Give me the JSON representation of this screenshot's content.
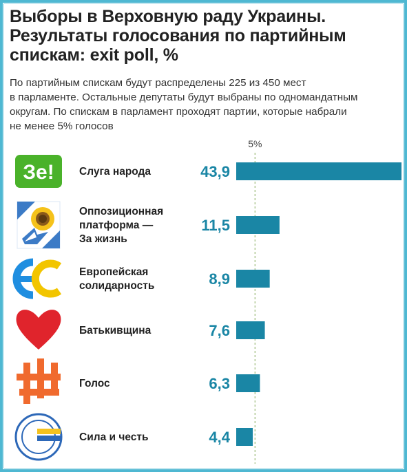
{
  "title_lines": [
    "Выборы в Верховную раду Украины.",
    "Результаты голосования по партийным",
    "спискам: exit poll, %"
  ],
  "subtitle_lines": [
    "По партийным спискам будут распределены 225 из 450 мест",
    "в парламенте. Остальные депутаты будут выбраны по одномандатным",
    "округам. По спискам в парламент проходят партии, которые набрали",
    "не менее 5% голосов"
  ],
  "chart_data": {
    "type": "bar",
    "orientation": "horizontal",
    "categories": [
      "Слуга народа",
      "Оппозиционная платформа — За жизнь",
      "Европейская солидарность",
      "Батькивщина",
      "Голос",
      "Сила и честь"
    ],
    "category_lines": [
      [
        "Слуга народа"
      ],
      [
        "Оппозиционная",
        "платформа —",
        "За жизнь"
      ],
      [
        "Европейская",
        "солидарность"
      ],
      [
        "Батькивщина"
      ],
      [
        "Голос"
      ],
      [
        "Сила и честь"
      ]
    ],
    "values": [
      43.9,
      11.5,
      8.9,
      7.6,
      6.3,
      4.4
    ],
    "value_labels": [
      "43,9",
      "11,5",
      "8,9",
      "7,6",
      "6,3",
      "4,4"
    ],
    "logos": [
      "ze-logo",
      "opzzh-sunflower-logo",
      "eurosolidarity-logo",
      "batkivshchyna-heart-logo",
      "holos-logo",
      "syla-i-chest-logo"
    ],
    "logo_text": {
      "ze": "Зе!"
    },
    "reference_line": {
      "value": 5,
      "label": "5%"
    },
    "xlim": [
      0,
      43.9
    ],
    "bar_color": "#1a86a5"
  },
  "colors": {
    "frame": "#4fb8d2",
    "bar": "#1a86a5",
    "value_text": "#1a86a5",
    "reference_line": "#a8c38a",
    "ze_green": "#4ab22a",
    "opzzh_blue": "#3c7bc6",
    "eurosolidarity_blue": "#1f8ee0",
    "eurosolidarity_yellow": "#f2c500",
    "batkivshchyna_red": "#e0242c",
    "holos_orange": "#f06a2e",
    "syla_blue": "#2d68b8",
    "syla_yellow": "#f4c21f"
  }
}
